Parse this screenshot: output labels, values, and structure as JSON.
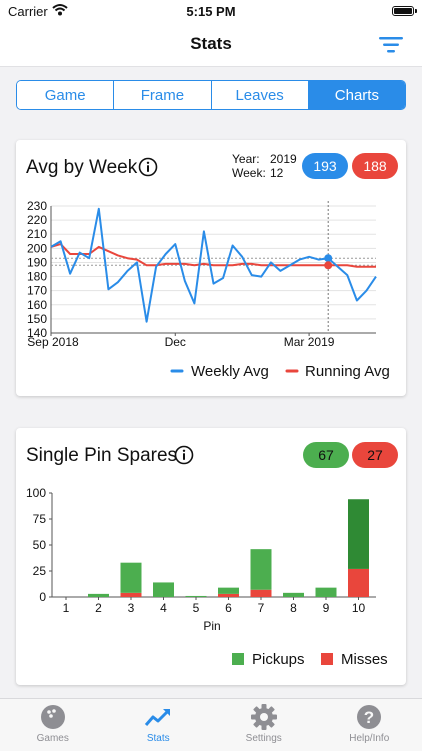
{
  "status_bar": {
    "carrier": "Carrier",
    "time": "5:15 PM"
  },
  "nav": {
    "title": "Stats"
  },
  "segments": [
    {
      "label": "Game",
      "active": false
    },
    {
      "label": "Frame",
      "active": false
    },
    {
      "label": "Leaves",
      "active": false
    },
    {
      "label": "Charts",
      "active": true
    }
  ],
  "avg_card": {
    "title": "Avg by Week",
    "year_label": "Year:",
    "year_value": "2019",
    "week_label": "Week:",
    "week_value": "12",
    "pill_blue": "193",
    "pill_red": "188"
  },
  "spares_card": {
    "title": "Single Pin Spares",
    "pill_green": "67",
    "pill_red": "27"
  },
  "tabs": [
    {
      "label": "Games",
      "icon": "bowling-ball-icon",
      "active": false
    },
    {
      "label": "Stats",
      "icon": "trend-chart-icon",
      "active": true
    },
    {
      "label": "Settings",
      "icon": "gear-icon",
      "active": false
    },
    {
      "label": "Help/Info",
      "icon": "help-icon",
      "active": false
    }
  ],
  "colors": {
    "blue": "#2a8ce8",
    "red": "#e9463c",
    "green": "#4cae4f",
    "dark_green": "#2f8a34"
  },
  "chart_data": [
    {
      "type": "line",
      "title": "Avg by Week",
      "x_tick_labels": [
        "Sep 2018",
        "Dec",
        "Mar 2019"
      ],
      "ylim": [
        140,
        230
      ],
      "y_ticks": [
        140,
        150,
        160,
        170,
        180,
        190,
        200,
        210,
        220,
        230
      ],
      "grid": true,
      "legend_position": "bottom-right",
      "series": [
        {
          "name": "Weekly Avg",
          "color": "#2a8ce8",
          "values": [
            201,
            205,
            182,
            197,
            193,
            228,
            171,
            176,
            184,
            190,
            148,
            187,
            196,
            203,
            177,
            161,
            212,
            175,
            179,
            202,
            194,
            181,
            180,
            190,
            184,
            188,
            192,
            194,
            192,
            193,
            187,
            181,
            163,
            170,
            180
          ]
        },
        {
          "name": "Running Avg",
          "color": "#e9463c",
          "values": [
            201,
            203,
            196,
            196,
            196,
            201,
            198,
            195,
            193,
            192,
            188,
            188,
            189,
            189,
            189,
            188,
            189,
            188,
            188,
            188,
            189,
            189,
            188,
            188,
            188,
            188,
            188,
            188,
            188,
            188,
            188,
            188,
            187,
            187,
            187
          ]
        }
      ],
      "highlight": {
        "x_index": 29,
        "blue": 193,
        "red": 188
      }
    },
    {
      "type": "bar",
      "stacked": true,
      "title": "Single Pin Spares",
      "xlabel": "Pin",
      "categories": [
        "1",
        "2",
        "3",
        "4",
        "5",
        "6",
        "7",
        "8",
        "9",
        "10"
      ],
      "ylim": [
        0,
        100
      ],
      "y_ticks": [
        0,
        25,
        50,
        75,
        100
      ],
      "legend_position": "bottom-right",
      "series": [
        {
          "name": "Pickups",
          "color": "#4cae4f",
          "values": [
            0,
            3,
            29,
            14,
            1,
            6,
            39,
            4,
            9,
            67
          ]
        },
        {
          "name": "Misses",
          "color": "#e9463c",
          "values": [
            0,
            0,
            4,
            0,
            0,
            3,
            7,
            0,
            0,
            27
          ]
        }
      ]
    }
  ]
}
